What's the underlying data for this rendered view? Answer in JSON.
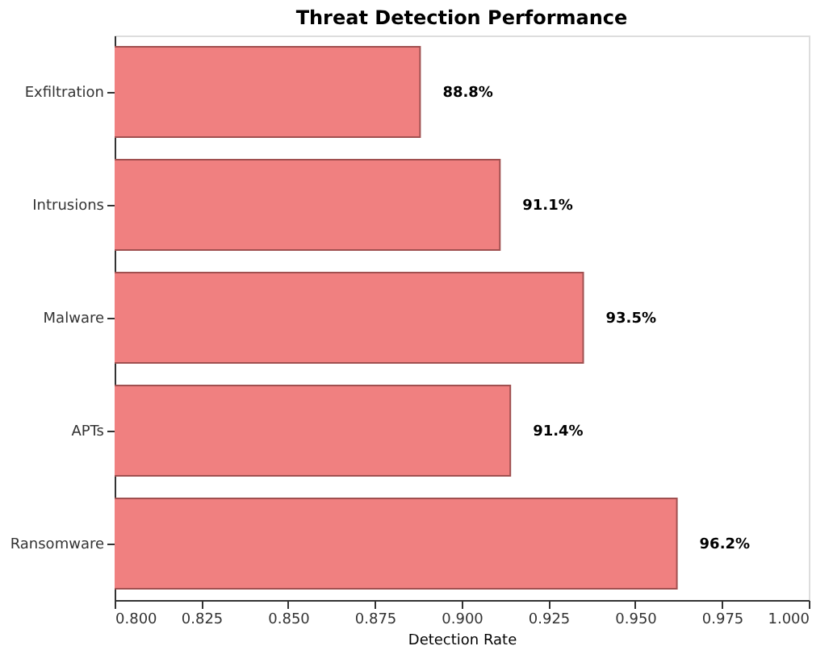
{
  "chart_data": {
    "type": "bar",
    "orientation": "horizontal",
    "title": "Threat Detection Performance",
    "xlabel": "Detection Rate",
    "categories": [
      "Exfiltration",
      "Intrusions",
      "Malware",
      "APTs",
      "Ransomware"
    ],
    "values": [
      0.888,
      0.911,
      0.935,
      0.914,
      0.962
    ],
    "value_labels": [
      "88.8%",
      "91.1%",
      "93.5%",
      "91.4%",
      "96.2%"
    ],
    "color": "#f08080",
    "xlim": [
      0.8,
      1.0
    ],
    "xticks": [
      {
        "value": 0.8,
        "label": "0.800"
      },
      {
        "value": 0.825,
        "label": "0.825"
      },
      {
        "value": 0.85,
        "label": "0.850"
      },
      {
        "value": 0.875,
        "label": "0.875"
      },
      {
        "value": 0.9,
        "label": "0.900"
      },
      {
        "value": 0.925,
        "label": "0.925"
      },
      {
        "value": 0.95,
        "label": "0.950"
      },
      {
        "value": 0.975,
        "label": "0.975"
      },
      {
        "value": 1.0,
        "label": "1.000"
      }
    ],
    "grid": false
  }
}
